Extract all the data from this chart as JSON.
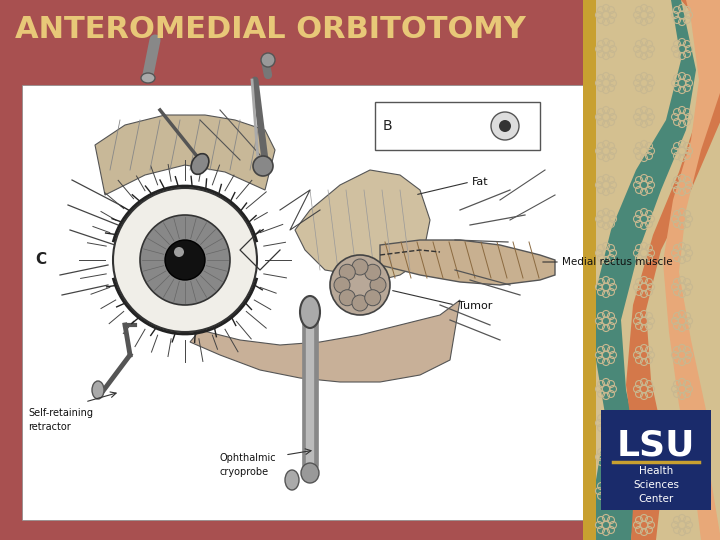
{
  "title": "ANTEROMEDIAL ORBITOTOMY",
  "title_color": "#E8C878",
  "title_fontsize": 22,
  "bg_color": "#A85050",
  "image_bg": "#FFFFFF",
  "lsu_box_color": "#1A2B6B",
  "lsu_text": "LSU",
  "lsu_sub": "Health\nSciences\nCenter",
  "label_fat": "Fat",
  "label_muscle": "Medial rectus muscle",
  "label_tumor": "Tumor",
  "label_retractor": "Self-retaining\nretractor",
  "label_cryoprobe": "Ophthalmic\ncryoprobe",
  "label_B": "B",
  "label_C": "C",
  "gold_strip_color": "#C8A030",
  "deco_tan": "#D4C090",
  "deco_green": "#5A9E8A",
  "deco_orange": "#D4784A",
  "deco_salmon": "#E8A878",
  "deco_teal": "#4A8878",
  "flower_color": "#C8B890"
}
